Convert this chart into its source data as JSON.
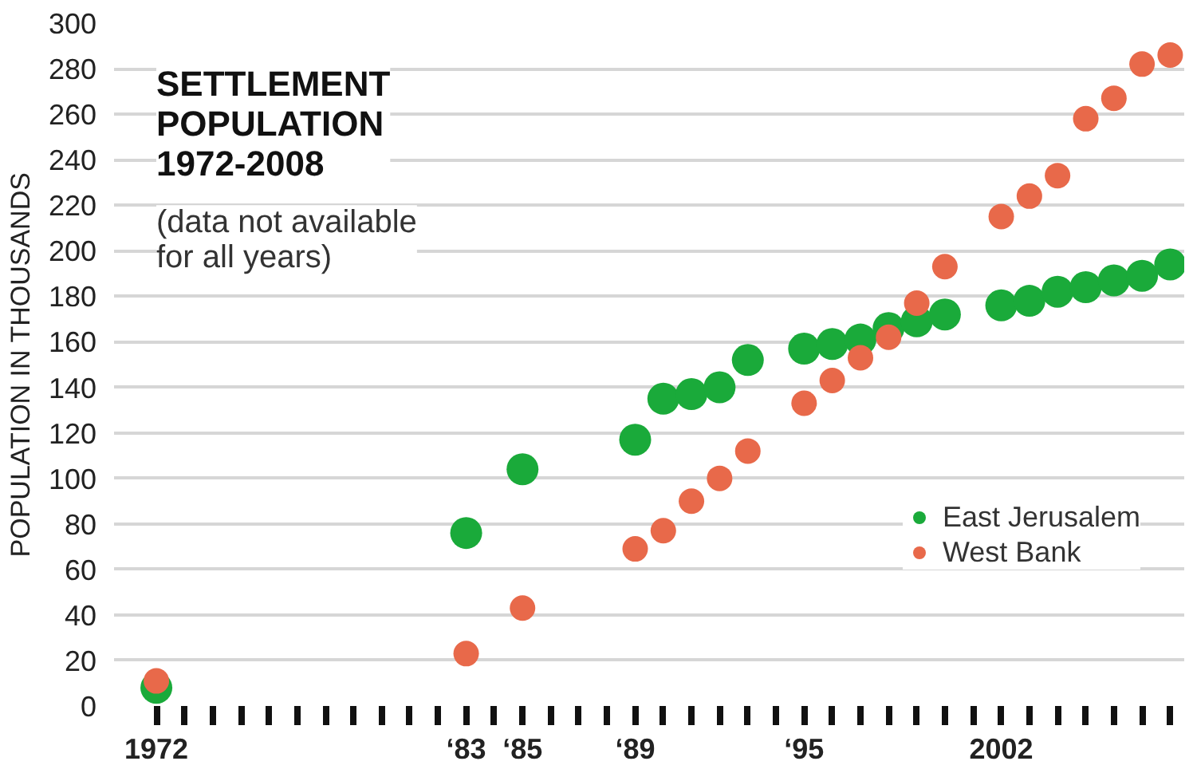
{
  "chart_data": {
    "type": "scatter",
    "title": "SETTLEMENT\nPOPULATION\n1972-2008",
    "subtitle": "(data not available\nfor all years)",
    "ylabel": "POPULATION IN THOUSANDS",
    "series": [
      {
        "name": "East Jerusalem",
        "color": "#1aaa3a",
        "x": [
          "1972",
          "1983",
          "1985",
          "1989",
          "1990",
          "1991",
          "1992",
          "1993",
          "1995",
          "1996",
          "1997",
          "1998",
          "1999",
          "2000",
          "2002",
          "2003",
          "2004",
          "2005",
          "2006",
          "2007",
          "2008"
        ],
        "values": [
          8,
          76,
          104,
          117,
          135,
          137,
          140,
          152,
          157,
          159,
          161,
          166,
          169,
          172,
          176,
          178,
          182,
          184,
          187,
          189,
          194
        ]
      },
      {
        "name": "West Bank",
        "color": "#e8694a",
        "x": [
          "1972",
          "1983",
          "1985",
          "1989",
          "1990",
          "1991",
          "1992",
          "1993",
          "1995",
          "1996",
          "1997",
          "1998",
          "1999",
          "2000",
          "2002",
          "2003",
          "2004",
          "2005",
          "2006",
          "2007",
          "2008"
        ],
        "values": [
          11,
          23,
          43,
          69,
          77,
          90,
          100,
          112,
          133,
          143,
          153,
          162,
          177,
          193,
          215,
          224,
          233,
          258,
          267,
          282,
          286
        ]
      }
    ],
    "xlim": [
      "1970-07",
      "2008-07"
    ],
    "ylim": [
      0,
      300
    ],
    "xticks": [
      {
        "value": "1972",
        "label": "1972"
      },
      {
        "value": "1973",
        "label": null
      },
      {
        "value": "1974",
        "label": null
      },
      {
        "value": "1975",
        "label": null
      },
      {
        "value": "1976",
        "label": null
      },
      {
        "value": "1977",
        "label": null
      },
      {
        "value": "1978",
        "label": null
      },
      {
        "value": "1979",
        "label": null
      },
      {
        "value": "1980",
        "label": null
      },
      {
        "value": "1981",
        "label": null
      },
      {
        "value": "1982",
        "label": null
      },
      {
        "value": "1983",
        "label": "‘83"
      },
      {
        "value": "1984",
        "label": null
      },
      {
        "value": "1985",
        "label": "‘85"
      },
      {
        "value": "1986",
        "label": null
      },
      {
        "value": "1987",
        "label": null
      },
      {
        "value": "1988",
        "label": null
      },
      {
        "value": "1989",
        "label": "‘89"
      },
      {
        "value": "1990",
        "label": null
      },
      {
        "value": "1991",
        "label": null
      },
      {
        "value": "1992",
        "label": null
      },
      {
        "value": "1993",
        "label": null
      },
      {
        "value": "1994",
        "label": null
      },
      {
        "value": "1995",
        "label": "‘95"
      },
      {
        "value": "1996",
        "label": null
      },
      {
        "value": "1997",
        "label": null
      },
      {
        "value": "1998",
        "label": null
      },
      {
        "value": "1999",
        "label": null
      },
      {
        "value": "2000",
        "label": null
      },
      {
        "value": "2001",
        "label": null
      },
      {
        "value": "2002",
        "label": "2002"
      },
      {
        "value": "2003",
        "label": null
      },
      {
        "value": "2004",
        "label": null
      },
      {
        "value": "2005",
        "label": null
      },
      {
        "value": "2006",
        "label": null
      },
      {
        "value": "2007",
        "label": null
      },
      {
        "value": "2008",
        "label": null
      }
    ],
    "yticks": [
      0,
      20,
      40,
      60,
      80,
      100,
      120,
      140,
      160,
      180,
      200,
      220,
      240,
      260,
      280,
      300
    ],
    "grid": "y",
    "legend": "right",
    "marker": "circle"
  }
}
